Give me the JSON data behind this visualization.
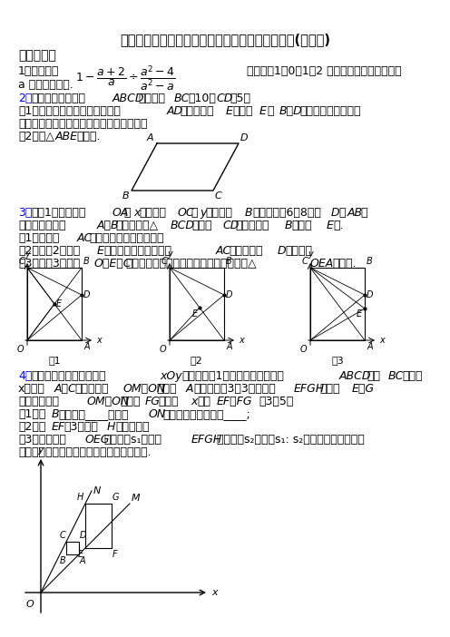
{
  "title": "新苏科八年级数学下册第二学期期末测试题及答案(共五套)",
  "section": "一、解答题",
  "bg_color": "#ffffff",
  "text_color": "#000000",
  "blue_color": "#0000cc"
}
